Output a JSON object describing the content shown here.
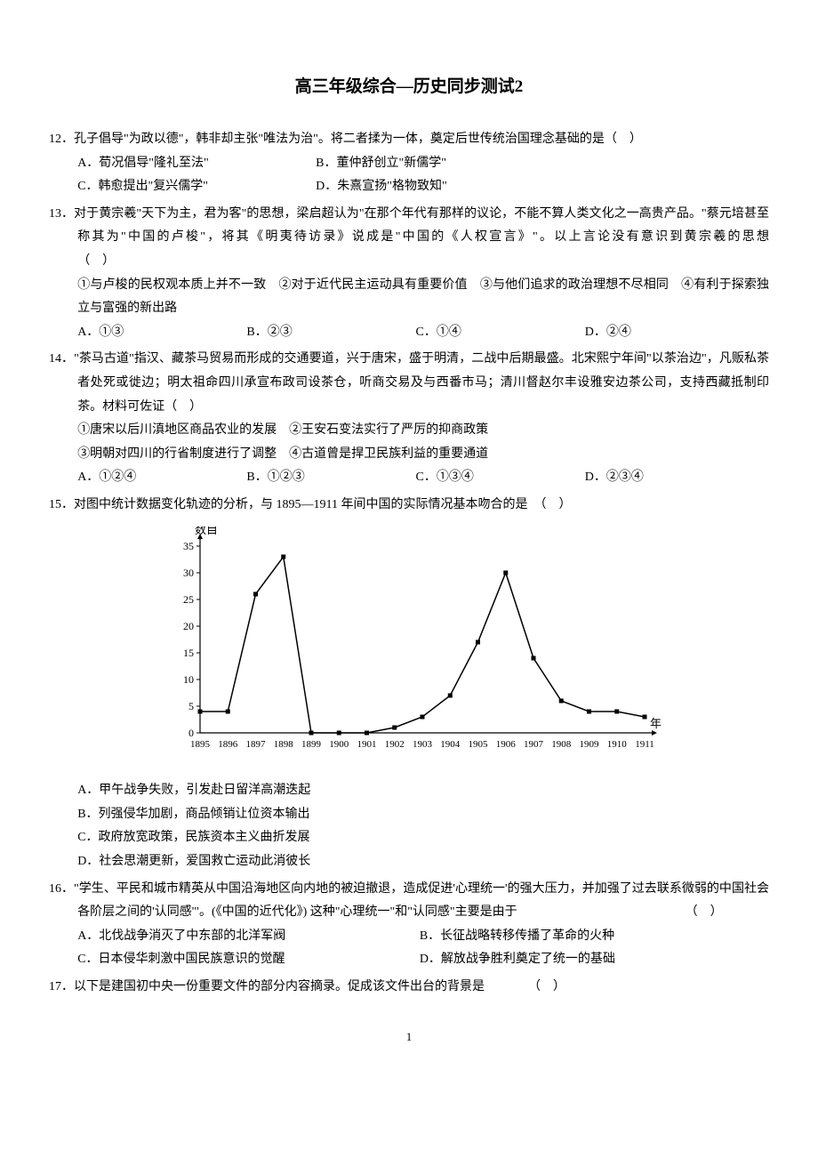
{
  "title": "高三年级综合—历史同步测试2",
  "page_number": "1",
  "questions": [
    {
      "num": "12",
      "stem": "孔子倡导\"为政以德\"，韩非却主张\"唯法为治\"。将二者揉为一体，奠定后世传统治国理念基础的是（　）",
      "opts": [
        "A．荀况倡导\"隆礼至法\"",
        "B．董仲舒创立\"新儒学\"",
        "C．韩愈提出\"复兴儒学\"",
        "D．朱熹宣扬\"格物致知\""
      ]
    },
    {
      "num": "13",
      "stem": "对于黄宗羲\"天下为主，君为客\"的思想，梁启超认为\"在那个年代有那样的议论，不能不算人类文化之一高贵产品。\"蔡元培甚至称其为\"中国的卢梭\"，将其《明夷待访录》说成是\"中国的《人权宣言》\"。以上言论没有意识到黄宗羲的思想　　　　　　　　　　（　）",
      "subs": [
        "①与卢梭的民权观本质上并不一致　②对于近代民主运动具有重要价值　③与他们追求的政治理想不尽相同　④有利于探索独立与富强的新出路"
      ],
      "opts": [
        "A．①③",
        "B．②③",
        "C．①④",
        "D．②④"
      ]
    },
    {
      "num": "14",
      "stem": "\"茶马古道\"指汉、藏茶马贸易而形成的交通要道，兴于唐宋，盛于明清，二战中后期最盛。北宋熙宁年间\"以茶治边\"，凡贩私茶者处死或徙边；明太祖命四川承宣布政司设茶仓，听商交易及与西番市马；清川督赵尔丰设雅安边茶公司，支持西藏抵制印茶。材料可佐证（　）",
      "subs": [
        "①唐宋以后川滇地区商品农业的发展　②王安石变法实行了严厉的抑商政策",
        "③明朝对四川的行省制度进行了调整　④古道曾是捍卫民族利益的重要通道"
      ],
      "opts": [
        "A．①②④",
        "B．①②③",
        "C．①③④",
        "D．②③④"
      ]
    },
    {
      "num": "15",
      "stem": "对图中统计数据变化轨迹的分析，与 1895—1911 年间中国的实际情况基本吻合的是　（　）",
      "opts": [
        "A．甲午战争失败，引发赴日留洋高潮迭起",
        "B．列强侵华加剧，商品倾销让位资本输出",
        "C．政府放宽政策，民族资本主义曲折发展",
        "D．社会思潮更新，爱国救亡运动此消彼长"
      ]
    },
    {
      "num": "16",
      "stem": "\"学生、平民和城市精英从中国沿海地区向内地的被迫撤退，造成促进'心理统一'的强大压力，并加强了过去联系微弱的中国社会各阶层之间的'认同感'\"。(《中国的近代化》) 这种\"心理统一\"和\"认同感\"主要是由于　　　　　　　　　　　　　　（　）",
      "opts": [
        "A．北伐战争消灭了中东部的北洋军阀",
        "B．长征战略转移传播了革命的火种",
        "C．日本侵华刺激中国民族意识的觉醒",
        "D．解放战争胜利奠定了统一的基础"
      ]
    },
    {
      "num": "17",
      "stem": "以下是建国初中央一份重要文件的部分内容摘录。促成该文件出台的背景是　　　　（　）"
    }
  ],
  "chart": {
    "type": "line",
    "y_label": "数目",
    "x_label": "年",
    "ylim": [
      0,
      35
    ],
    "ytick_step": 5,
    "x_values": [
      "1895",
      "1896",
      "1897",
      "1898",
      "1899",
      "1900",
      "1901",
      "1902",
      "1903",
      "1904",
      "1905",
      "1906",
      "1907",
      "1908",
      "1909",
      "1910",
      "1911"
    ],
    "y_values": [
      4,
      4,
      26,
      33,
      0,
      0,
      0,
      1,
      3,
      7,
      17,
      30,
      14,
      6,
      4,
      4,
      3
    ],
    "line_color": "#000000",
    "marker_style": "square",
    "marker_size": 5,
    "line_width": 1.5,
    "background_color": "#ffffff",
    "axis_color": "#000000",
    "label_fontsize": 13,
    "tick_fontsize": 12
  }
}
